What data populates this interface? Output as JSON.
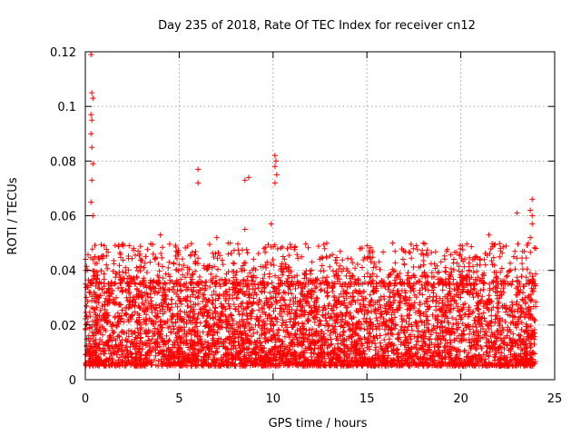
{
  "chart_data": {
    "type": "scatter",
    "title": "Day 235 of 2018, Rate Of TEC Index for receiver cn12",
    "xlabel": "GPS time / hours",
    "ylabel": "ROTI / TECUs",
    "xlim": [
      0,
      25
    ],
    "ylim": [
      0,
      0.12
    ],
    "xticks": [
      0,
      5,
      10,
      15,
      20,
      25
    ],
    "yticks": [
      0,
      0.02,
      0.04,
      0.06,
      0.08,
      0.1,
      0.12
    ],
    "xtick_labels": [
      "0",
      "5",
      "10",
      "15",
      "20",
      "25"
    ],
    "ytick_labels": [
      "0",
      "0.02",
      "0.04",
      "0.06",
      "0.08",
      "0.1",
      "0.12"
    ],
    "grid": true,
    "marker": "+",
    "series_color": "#ff0000",
    "series": [
      {
        "name": "ROTI",
        "x_range": [
          0,
          24
        ],
        "typical_band": [
          0.005,
          0.035
        ],
        "peaks": [
          {
            "x": 0.3,
            "y": 0.119
          },
          {
            "x": 0.35,
            "y": 0.105
          },
          {
            "x": 0.4,
            "y": 0.103
          },
          {
            "x": 0.3,
            "y": 0.097
          },
          {
            "x": 0.35,
            "y": 0.095
          },
          {
            "x": 0.3,
            "y": 0.09
          },
          {
            "x": 0.35,
            "y": 0.085
          },
          {
            "x": 0.4,
            "y": 0.079
          },
          {
            "x": 0.35,
            "y": 0.073
          },
          {
            "x": 0.3,
            "y": 0.065
          },
          {
            "x": 0.4,
            "y": 0.06
          },
          {
            "x": 6.0,
            "y": 0.077
          },
          {
            "x": 6.0,
            "y": 0.072
          },
          {
            "x": 8.5,
            "y": 0.073
          },
          {
            "x": 8.7,
            "y": 0.074
          },
          {
            "x": 10.1,
            "y": 0.082
          },
          {
            "x": 10.15,
            "y": 0.08
          },
          {
            "x": 10.1,
            "y": 0.078
          },
          {
            "x": 10.2,
            "y": 0.075
          },
          {
            "x": 10.1,
            "y": 0.072
          },
          {
            "x": 9.9,
            "y": 0.057
          },
          {
            "x": 8.5,
            "y": 0.055
          },
          {
            "x": 4.0,
            "y": 0.053
          },
          {
            "x": 7.0,
            "y": 0.052
          },
          {
            "x": 21.5,
            "y": 0.053
          },
          {
            "x": 23.0,
            "y": 0.061
          },
          {
            "x": 23.8,
            "y": 0.066
          },
          {
            "x": 23.7,
            "y": 0.062
          },
          {
            "x": 23.8,
            "y": 0.06
          },
          {
            "x": 23.8,
            "y": 0.057
          },
          {
            "x": 23.7,
            "y": 0.052
          },
          {
            "x": 23.6,
            "y": 0.05
          },
          {
            "x": 15.0,
            "y": 0.049
          },
          {
            "x": 18.0,
            "y": 0.05
          },
          {
            "x": 16.5,
            "y": 0.047
          }
        ]
      }
    ]
  }
}
